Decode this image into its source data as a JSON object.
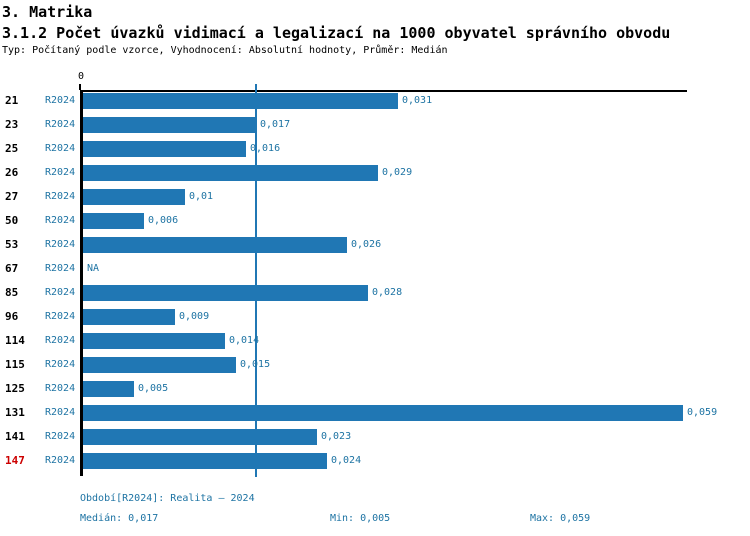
{
  "header": {
    "title": "3. Matrika",
    "subtitle": "3.1.2 Počet úvazků vidimací a legalizací na 1000 obyvatel správního obvodu",
    "meta": "Typ: Počítaný podle vzorce, Vyhodnocení: Absolutní hodnoty, Průměr: Medián"
  },
  "colors": {
    "bar": "#2077B4",
    "blue_text": "#1D73A3",
    "highlight_red": "#CC0000",
    "axis": "#000000",
    "background": "#FFFFFF"
  },
  "chart_data": {
    "type": "bar",
    "orientation": "horizontal",
    "title": "3.1.2 Počet úvazků vidimací a legalizací na 1000 obyvatel správního obvodu",
    "x_axis": {
      "zero_label": "0",
      "min": 0,
      "max": 0.059
    },
    "grid": "off",
    "median_line_value": 0.017,
    "categories": [
      "21",
      "23",
      "25",
      "26",
      "27",
      "50",
      "53",
      "67",
      "85",
      "96",
      "114",
      "115",
      "125",
      "131",
      "141",
      "147"
    ],
    "series": [
      {
        "name": "R2024",
        "values": [
          0.031,
          0.017,
          0.016,
          0.029,
          0.01,
          0.006,
          0.026,
          null,
          0.028,
          0.009,
          0.014,
          0.015,
          0.005,
          0.059,
          0.023,
          0.024
        ]
      }
    ],
    "rows": [
      {
        "id": "21",
        "period": "R2024",
        "value": 0.031,
        "label": "0,031",
        "highlight": false
      },
      {
        "id": "23",
        "period": "R2024",
        "value": 0.017,
        "label": "0,017",
        "highlight": false
      },
      {
        "id": "25",
        "period": "R2024",
        "value": 0.016,
        "label": "0,016",
        "highlight": false
      },
      {
        "id": "26",
        "period": "R2024",
        "value": 0.029,
        "label": "0,029",
        "highlight": false
      },
      {
        "id": "27",
        "period": "R2024",
        "value": 0.01,
        "label": "0,01",
        "highlight": false
      },
      {
        "id": "50",
        "period": "R2024",
        "value": 0.006,
        "label": "0,006",
        "highlight": false
      },
      {
        "id": "53",
        "period": "R2024",
        "value": 0.026,
        "label": "0,026",
        "highlight": false
      },
      {
        "id": "67",
        "period": "R2024",
        "value": null,
        "label": "NA",
        "highlight": false
      },
      {
        "id": "85",
        "period": "R2024",
        "value": 0.028,
        "label": "0,028",
        "highlight": false
      },
      {
        "id": "96",
        "period": "R2024",
        "value": 0.009,
        "label": "0,009",
        "highlight": false
      },
      {
        "id": "114",
        "period": "R2024",
        "value": 0.014,
        "label": "0,014",
        "highlight": false
      },
      {
        "id": "115",
        "period": "R2024",
        "value": 0.015,
        "label": "0,015",
        "highlight": false
      },
      {
        "id": "125",
        "period": "R2024",
        "value": 0.005,
        "label": "0,005",
        "highlight": false
      },
      {
        "id": "131",
        "period": "R2024",
        "value": 0.059,
        "label": "0,059",
        "highlight": false
      },
      {
        "id": "141",
        "period": "R2024",
        "value": 0.023,
        "label": "0,023",
        "highlight": false
      },
      {
        "id": "147",
        "period": "R2024",
        "value": 0.024,
        "label": "0,024",
        "highlight": true
      }
    ],
    "stats": {
      "median": 0.017,
      "min": 0.005,
      "max": 0.059
    }
  },
  "footer": {
    "period": "Období[R2024]: Realita – 2024",
    "median": "Medián: 0,017",
    "min": "Min: 0,005",
    "max": "Max: 0,059"
  }
}
